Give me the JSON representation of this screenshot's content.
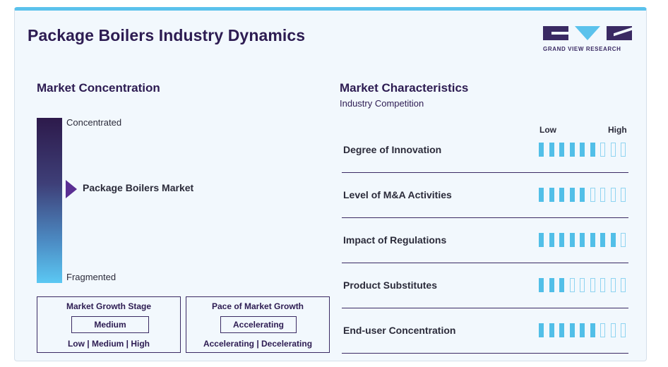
{
  "title": "Package Boilers Industry Dynamics",
  "logo": {
    "text": "GRAND VIEW RESEARCH"
  },
  "concentration": {
    "heading": "Market Concentration",
    "top_label": "Concentrated",
    "bottom_label": "Fragmented",
    "market_label": "Package Boilers Market",
    "market_position": 0.45
  },
  "growth_stage": {
    "title": "Market Growth Stage",
    "value": "Medium",
    "options": "Low | Medium | High"
  },
  "growth_pace": {
    "title": "Pace of Market Growth",
    "value": "Accelerating",
    "options": "Accelerating | Decelerating"
  },
  "characteristics": {
    "heading": "Market Characteristics",
    "subheading": "Industry Competition",
    "low_label": "Low",
    "high_label": "High",
    "max_level": 9,
    "rows": [
      {
        "label": "Degree of Innovation",
        "level": 6
      },
      {
        "label": "Level of M&A Activities",
        "level": 5
      },
      {
        "label": "Impact of Regulations",
        "level": 8
      },
      {
        "label": "Product Substitutes",
        "level": 3
      },
      {
        "label": "End-user Concentration",
        "level": 6
      }
    ]
  },
  "colors": {
    "accent": "#5bc2ec",
    "brand": "#2d1c52",
    "arrow": "#5a2f93"
  }
}
